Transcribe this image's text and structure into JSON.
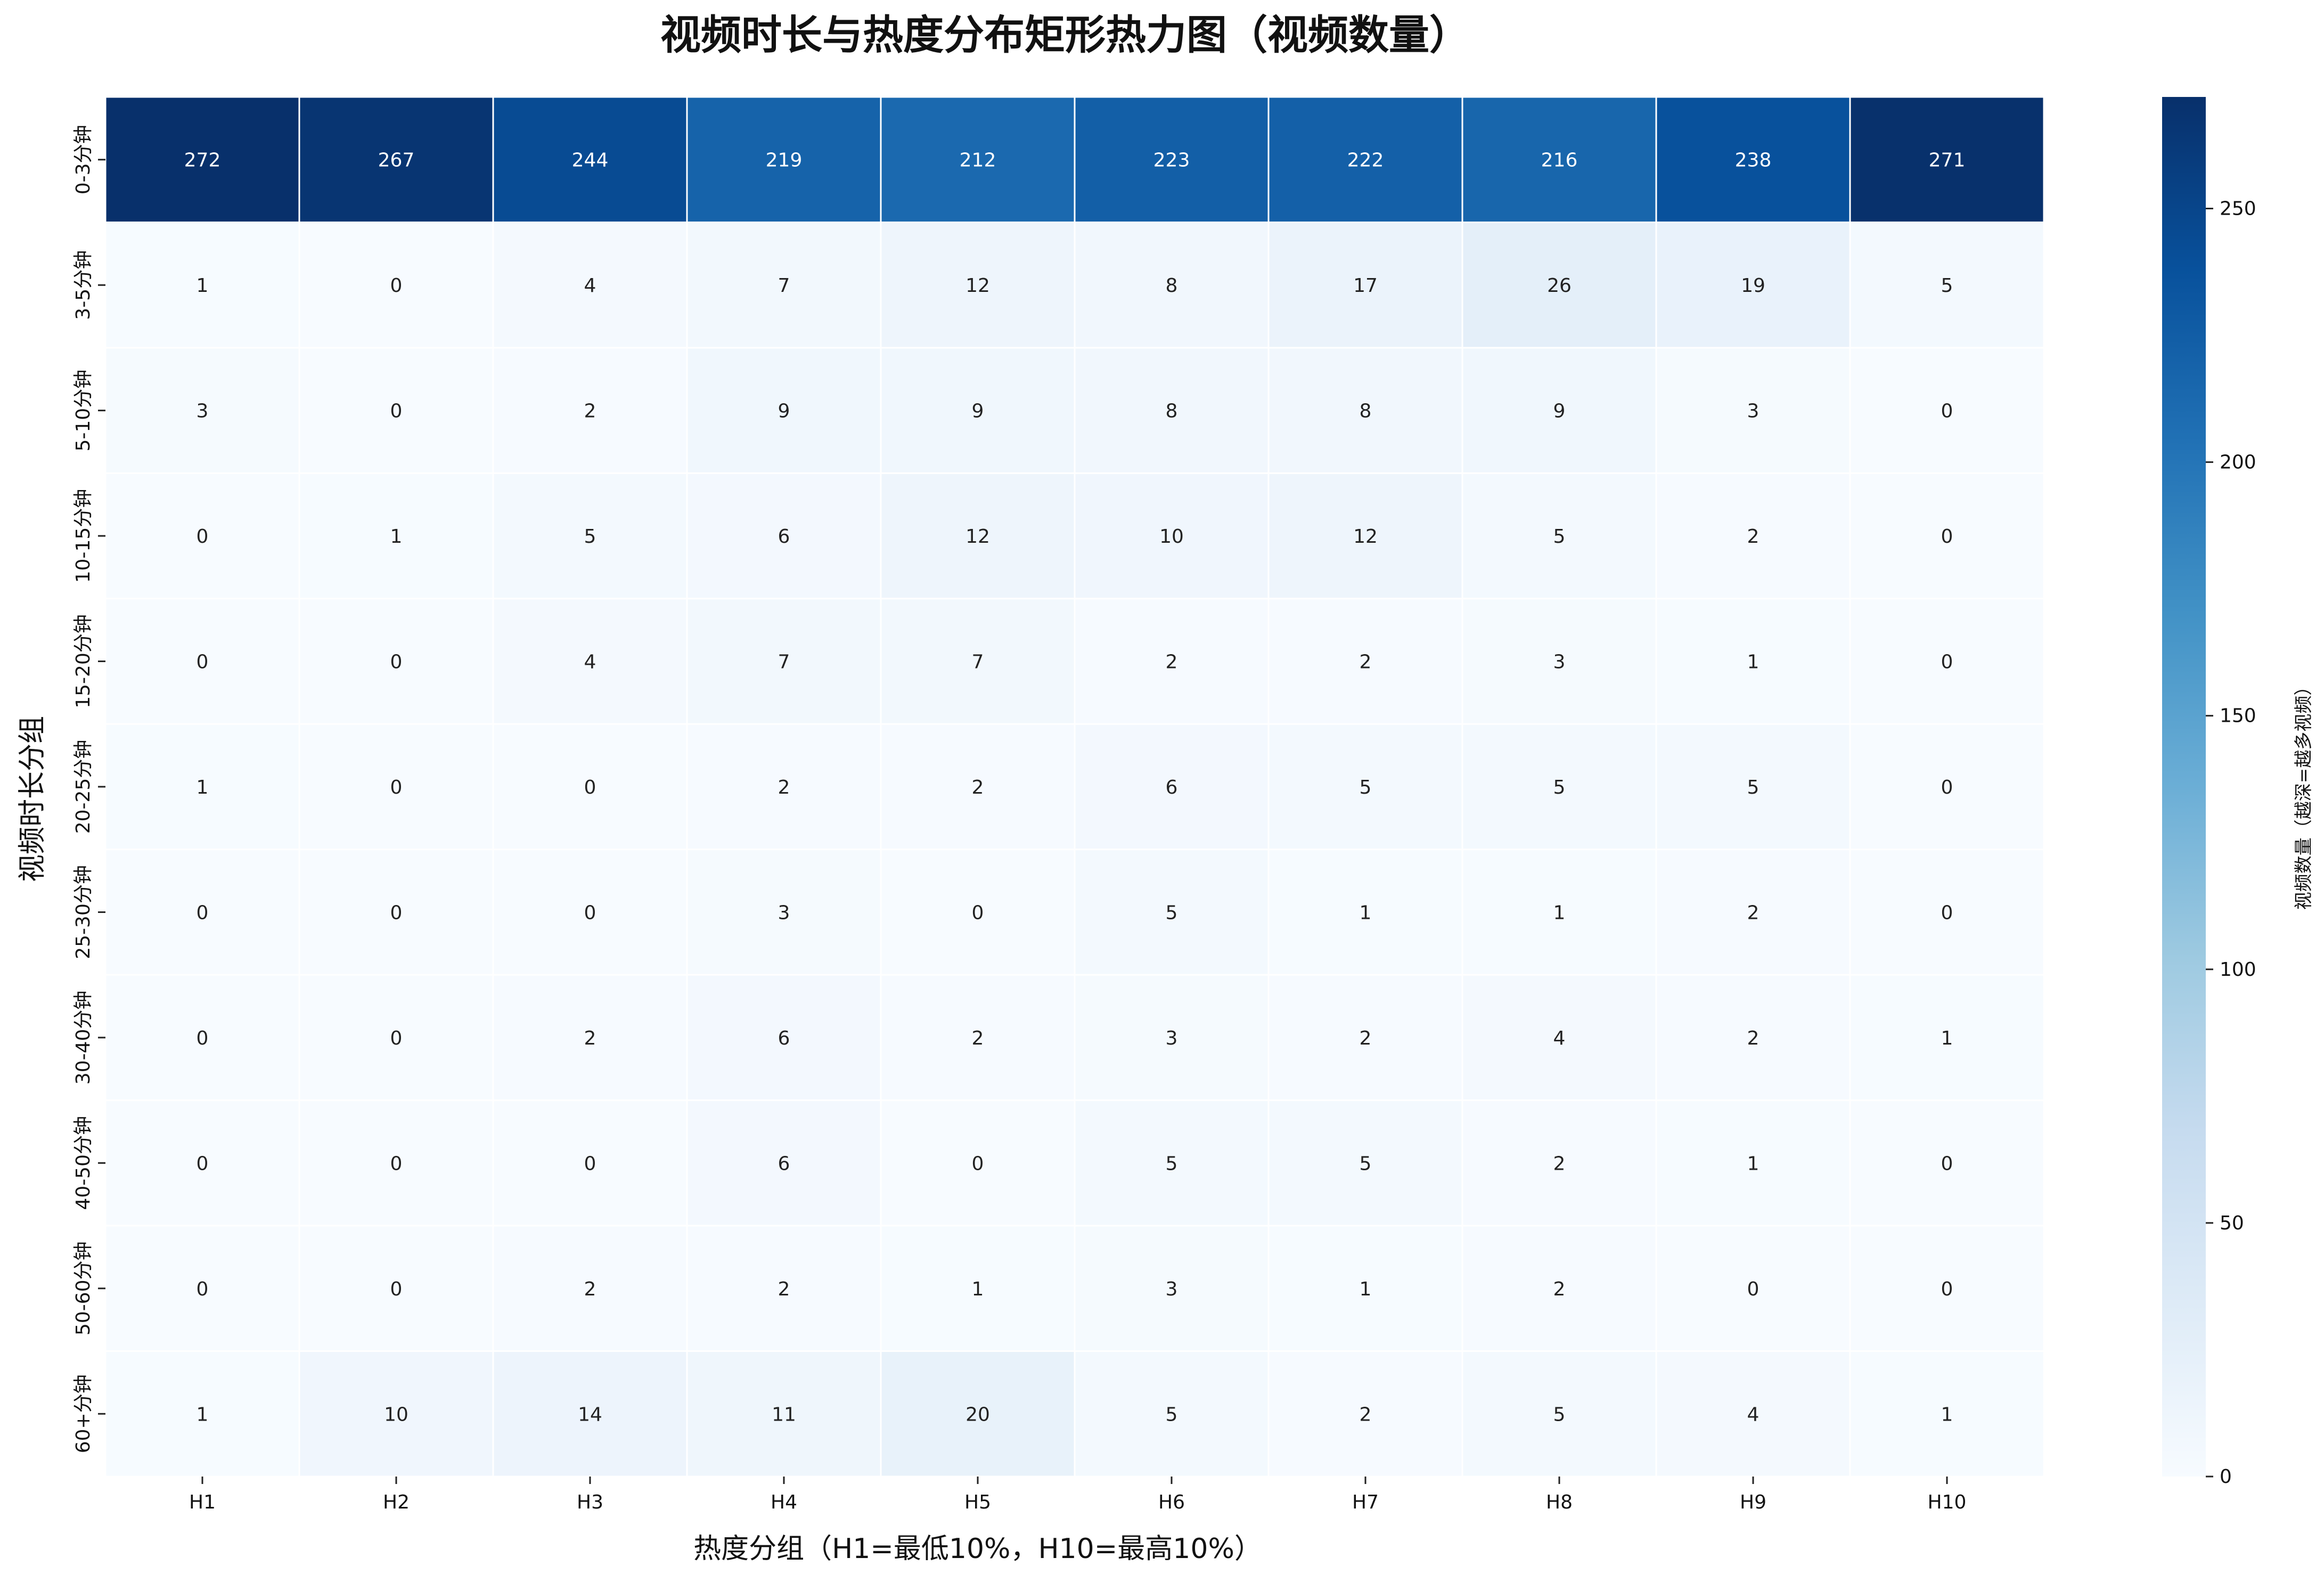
{
  "chart_data": {
    "type": "heatmap",
    "title": "视频时长与热度分布矩形热力图（视频数量）",
    "xlabel": "热度分组（H1=最低10%，H10=最高10%）",
    "ylabel": "视频时长分组",
    "x_categories": [
      "H1",
      "H2",
      "H3",
      "H4",
      "H5",
      "H6",
      "H7",
      "H8",
      "H9",
      "H10"
    ],
    "y_categories": [
      "0-3分钟",
      "3-5分钟",
      "5-10分钟",
      "10-15分钟",
      "15-20分钟",
      "20-25分钟",
      "25-30分钟",
      "30-40分钟",
      "40-50分钟",
      "50-60分钟",
      "60+分钟"
    ],
    "values": [
      [
        272,
        267,
        244,
        219,
        212,
        223,
        222,
        216,
        238,
        271
      ],
      [
        1,
        0,
        4,
        7,
        12,
        8,
        17,
        26,
        19,
        5
      ],
      [
        3,
        0,
        2,
        9,
        9,
        8,
        8,
        9,
        3,
        0
      ],
      [
        0,
        1,
        5,
        6,
        12,
        10,
        12,
        5,
        2,
        0
      ],
      [
        0,
        0,
        4,
        7,
        7,
        2,
        2,
        3,
        1,
        0
      ],
      [
        1,
        0,
        0,
        2,
        2,
        6,
        5,
        5,
        5,
        0
      ],
      [
        0,
        0,
        0,
        3,
        0,
        5,
        1,
        1,
        2,
        0
      ],
      [
        0,
        0,
        2,
        6,
        2,
        3,
        2,
        4,
        2,
        1
      ],
      [
        0,
        0,
        0,
        6,
        0,
        5,
        5,
        2,
        1,
        0
      ],
      [
        0,
        0,
        2,
        2,
        1,
        3,
        1,
        2,
        0,
        0
      ],
      [
        1,
        10,
        14,
        11,
        20,
        5,
        2,
        5,
        4,
        1
      ]
    ],
    "colormap": "Blues",
    "colorbar": {
      "label": "视频数量（越深=越多视频）",
      "range": [
        0,
        272
      ],
      "ticks": [
        0,
        50,
        100,
        150,
        200,
        250
      ]
    }
  }
}
